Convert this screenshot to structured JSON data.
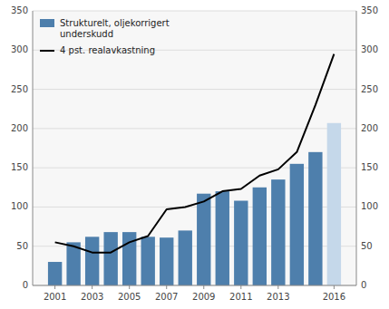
{
  "chart_data": {
    "type": "bar",
    "x": [
      2001,
      2002,
      2003,
      2004,
      2005,
      2006,
      2007,
      2008,
      2009,
      2010,
      2011,
      2012,
      2013,
      2014,
      2015,
      2016
    ],
    "series": [
      {
        "name": "Strukturelt, oljekorrigert\nunderskudd",
        "type": "bar",
        "color": "#4e7fac",
        "colors": [
          "#4e7fac",
          "#4e7fac",
          "#4e7fac",
          "#4e7fac",
          "#4e7fac",
          "#4e7fac",
          "#4e7fac",
          "#4e7fac",
          "#4e7fac",
          "#4e7fac",
          "#4e7fac",
          "#4e7fac",
          "#4e7fac",
          "#4e7fac",
          "#4e7fac",
          "#c5d8ea"
        ],
        "values": [
          30,
          55,
          62,
          68,
          68,
          62,
          61,
          70,
          117,
          120,
          108,
          125,
          135,
          155,
          170,
          207
        ]
      },
      {
        "name": "4 pst. realavkastning",
        "type": "line",
        "color": "#000000",
        "axis": "y2",
        "values": [
          55,
          50,
          42,
          42,
          55,
          63,
          97,
          100,
          107,
          120,
          123,
          140,
          148,
          170,
          230,
          295
        ]
      }
    ],
    "xlim": [
      1999.8,
      2017.2
    ],
    "xticks": [
      2001,
      2003,
      2005,
      2007,
      2009,
      2011,
      2013,
      2016
    ],
    "ylim": [
      0,
      350
    ],
    "yticks": [
      0,
      50,
      100,
      150,
      200,
      250,
      300,
      350
    ],
    "y2lim": [
      0,
      350
    ],
    "y2ticks": [
      0,
      50,
      100,
      150,
      200,
      250,
      300,
      350
    ],
    "grid": true,
    "legend": "upper-left"
  }
}
